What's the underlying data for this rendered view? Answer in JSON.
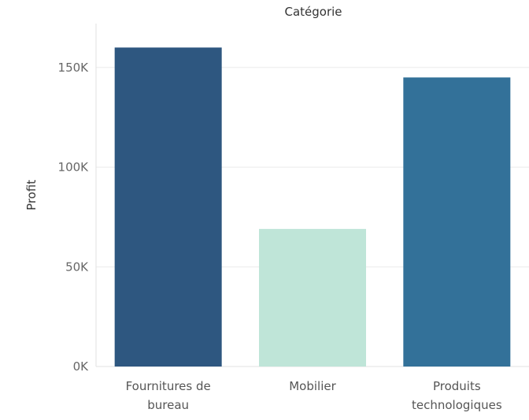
{
  "chart_data": {
    "type": "bar",
    "column_header": "Catégorie",
    "ylabel": "Profit",
    "categories": [
      [
        "Fournitures de",
        "bureau"
      ],
      [
        "Mobilier"
      ],
      [
        "Produits",
        "technologiques"
      ]
    ],
    "values": [
      160000,
      69000,
      145000
    ],
    "colors": [
      "#2e5780",
      "#bfe5d8",
      "#337199"
    ],
    "ylim": [
      0,
      172000
    ],
    "yticks": [
      0,
      50000,
      100000,
      150000
    ],
    "ytick_labels": [
      "0K",
      "50K",
      "100K",
      "150K"
    ],
    "grid": true,
    "legend": "none"
  }
}
